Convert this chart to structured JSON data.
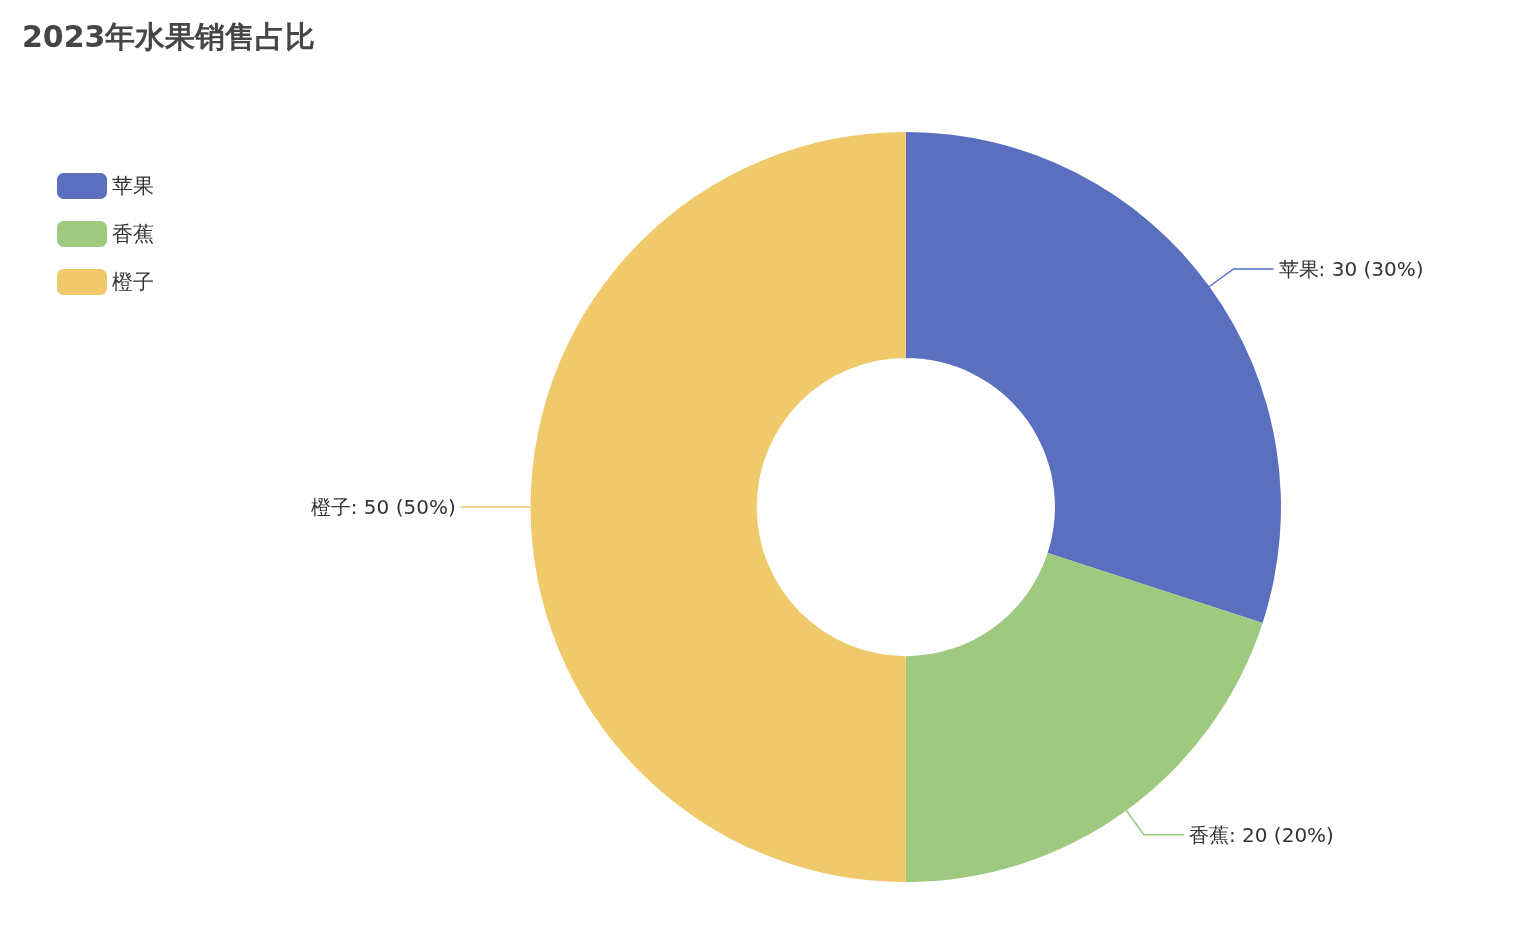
{
  "chart_data": {
    "type": "donut",
    "title": "2023年水果销售占比",
    "categories": [
      "苹果",
      "香蕉",
      "橙子"
    ],
    "values": [
      30,
      20,
      50
    ],
    "colors": [
      "#5b6fbf",
      "#9ec97f",
      "#f0c96b"
    ],
    "value_labels": [
      "苹果: 30 (30%)",
      "香蕉: 20 (20%)",
      "橙子: 50 (50%)"
    ],
    "legend": "top left"
  }
}
